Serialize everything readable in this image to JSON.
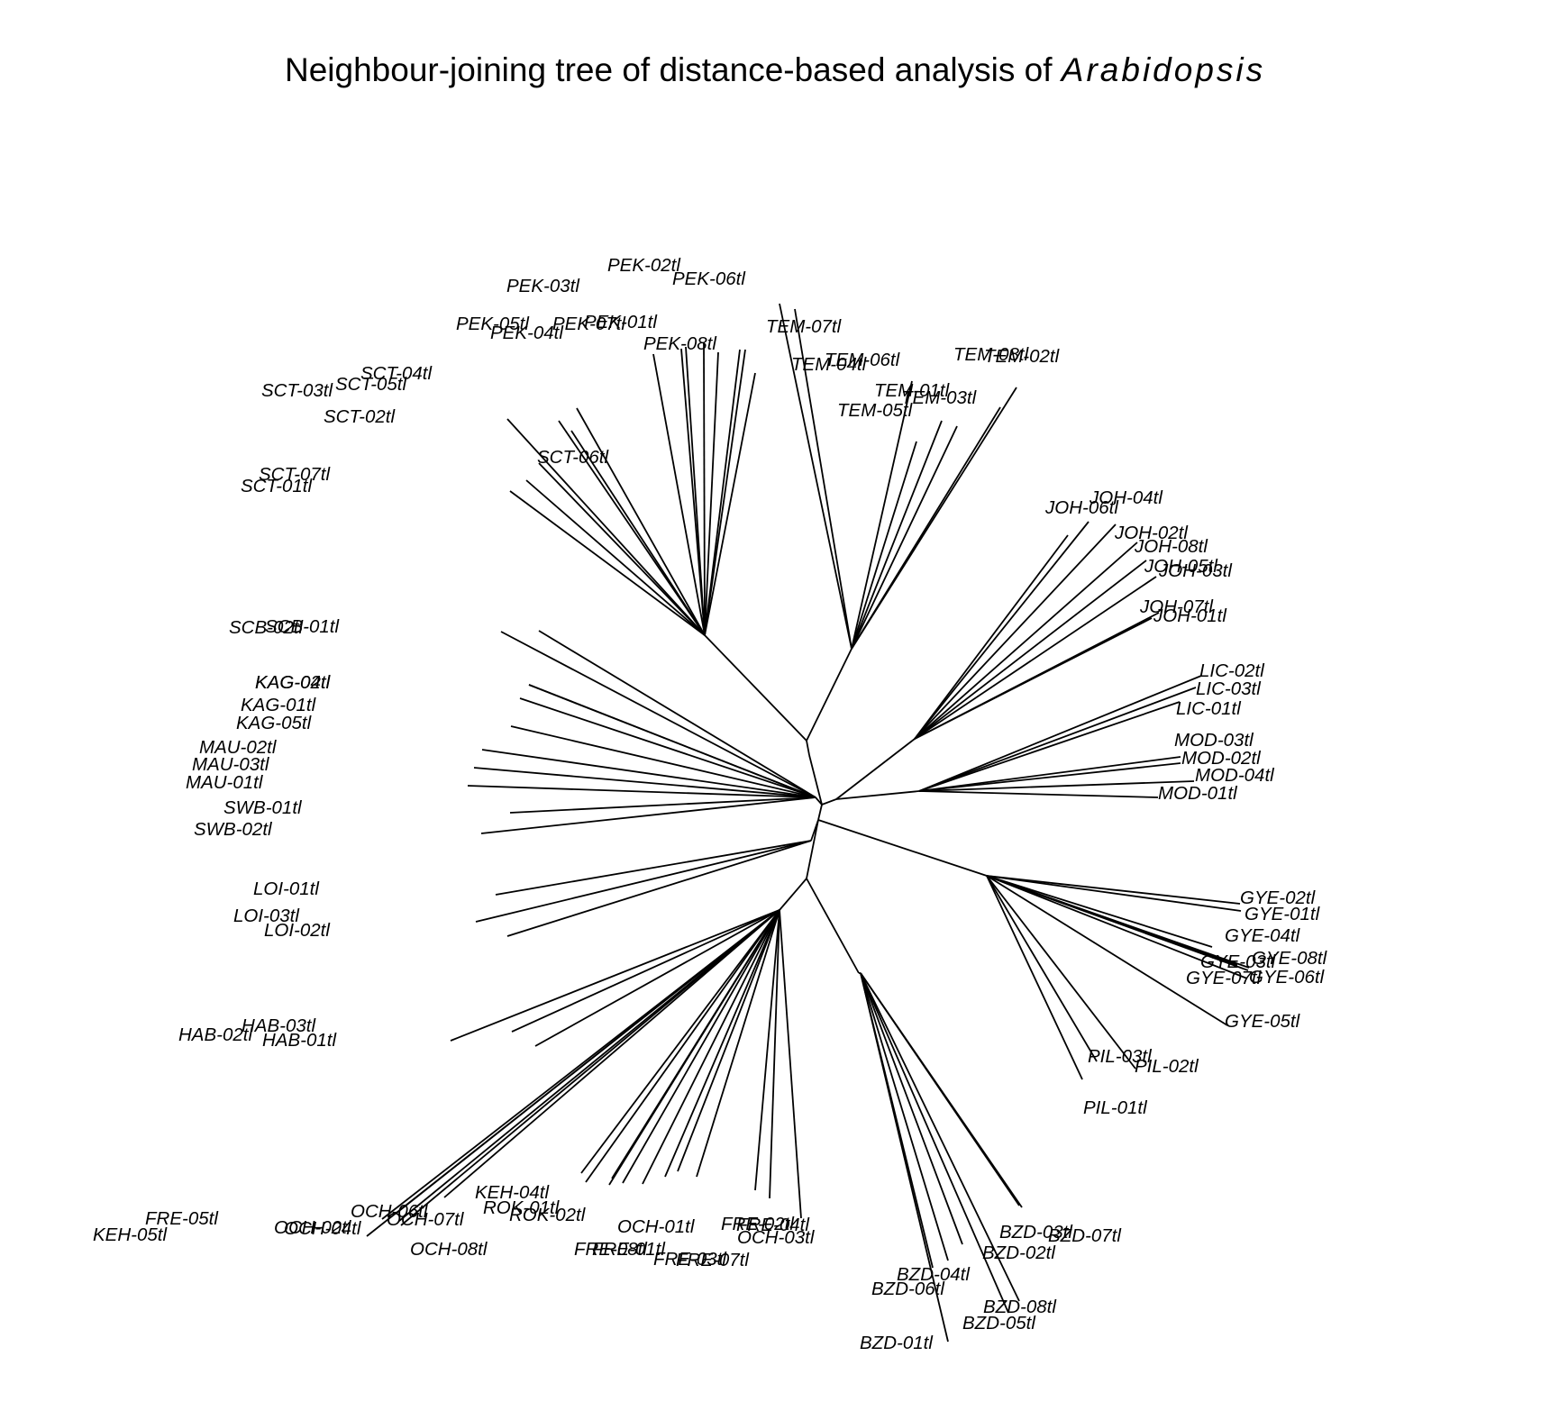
{
  "title": {
    "text": "Neighbour-joining tree of distance-based analysis of ",
    "italic": "Arabidopsis"
  },
  "tree": {
    "type": "unrooted-neighbour-joining",
    "groups": [
      {
        "id": "PEK",
        "leaves": [
          "PEK-02tl",
          "PEK-06tl",
          "PEK-03tl",
          "PEK-05tl",
          "PEK-04tl",
          "PEK-07tl",
          "PEK-01tl",
          "PEK-08tl"
        ]
      },
      {
        "id": "TEM",
        "leaves": [
          "TEM-07tl",
          "TEM-04tl",
          "TEM-06tl",
          "TEM-08tl",
          "TEM-02tl",
          "TEM-01tl",
          "TEM-03tl",
          "TEM-05tl"
        ]
      },
      {
        "id": "SCT",
        "leaves": [
          "SCT-04tl",
          "SCT-05tl",
          "SCT-03tl",
          "SCT-02tl",
          "SCT-06tl",
          "SCT-07tl",
          "SCT-01tl"
        ]
      },
      {
        "id": "JOH",
        "leaves": [
          "JOH-04tl",
          "JOH-06tl",
          "JOH-02tl",
          "JOH-08tl",
          "JOH-05tl",
          "JOH-03tl",
          "JOH-07tl",
          "JOH-01tl"
        ]
      },
      {
        "id": "LIC",
        "leaves": [
          "LIC-02tl",
          "LIC-03tl",
          "LIC-01tl"
        ]
      },
      {
        "id": "MOD",
        "leaves": [
          "MOD-03tl",
          "MOD-02tl",
          "MOD-04tl",
          "MOD-01tl"
        ]
      },
      {
        "id": "SCB",
        "leaves": [
          "SCB-01tl",
          "SCB-02tl"
        ]
      },
      {
        "id": "KAG",
        "leaves": [
          "KAG-04tl",
          "KAG-02tl",
          "KAG-01tl",
          "KAG-05tl"
        ]
      },
      {
        "id": "MAU",
        "leaves": [
          "MAU-02tl",
          "MAU-03tl",
          "MAU-01tl"
        ]
      },
      {
        "id": "SWB",
        "leaves": [
          "SWB-01tl",
          "SWB-02tl"
        ]
      },
      {
        "id": "LOI",
        "leaves": [
          "LOI-01tl",
          "LOI-03tl",
          "LOI-02tl"
        ]
      },
      {
        "id": "GYE",
        "leaves": [
          "GYE-02tl",
          "GYE-01tl",
          "GYE-04tl",
          "GYE-08tl",
          "GYE-03tl",
          "GYE-06tl",
          "GYE-07tl",
          "GYE-05tl"
        ]
      },
      {
        "id": "PIL",
        "leaves": [
          "PIL-03tl",
          "PIL-02tl",
          "PIL-01tl"
        ]
      },
      {
        "id": "HAB",
        "leaves": [
          "HAB-03tl",
          "HAB-02tl",
          "HAB-01tl"
        ]
      },
      {
        "id": "KEH",
        "leaves": [
          "KEH-04tl",
          "KEH-05tl"
        ]
      },
      {
        "id": "FRE",
        "leaves": [
          "FRE-05tl",
          "FRE-02tl",
          "FRE-04tl",
          "FRE-08tl",
          "FRE-01tl",
          "FRE-03tl",
          "FRE-07tl"
        ]
      },
      {
        "id": "OCH",
        "leaves": [
          "OCH-06tl",
          "OCH-02tl",
          "OCH-04tl",
          "OCH-07tl",
          "OCH-01tl",
          "OCH-03tl",
          "OCH-08tl"
        ]
      },
      {
        "id": "ROK",
        "leaves": [
          "ROK-01tl",
          "ROK-02tl"
        ]
      },
      {
        "id": "BZD",
        "leaves": [
          "BZD-03tl",
          "BZD-07tl",
          "BZD-02tl",
          "BZD-04tl",
          "BZD-06tl",
          "BZD-08tl",
          "BZD-05tl",
          "BZD-01tl"
        ]
      }
    ]
  }
}
